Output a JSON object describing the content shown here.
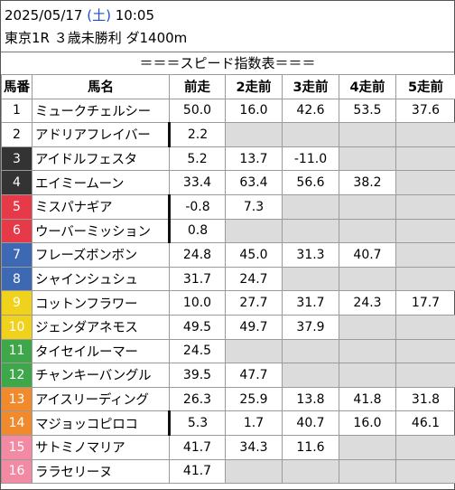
{
  "header": {
    "date": "2025/05/17",
    "dow_open": "(",
    "dow": "土",
    "dow_close": ")",
    "time": "10:05",
    "race": "東京1R ３歳未勝利 ダ1400m",
    "banner": "＝＝＝スピード指数表＝＝＝"
  },
  "table": {
    "columns": [
      "馬番",
      "馬名",
      "前走",
      "2走前",
      "3走前",
      "4走前",
      "5走前"
    ],
    "rows": [
      {
        "num": "1",
        "name": "ミュークチェルシー",
        "bg": "#ffffff",
        "fg": "#000000",
        "bar": false,
        "vals": [
          "50.0",
          "16.0",
          "42.6",
          "53.5",
          "37.6"
        ]
      },
      {
        "num": "2",
        "name": "アドリアフレイバー",
        "bg": "#ffffff",
        "fg": "#000000",
        "bar": true,
        "vals": [
          "2.2",
          "",
          "",
          "",
          ""
        ]
      },
      {
        "num": "3",
        "name": "アイドルフェスタ",
        "bg": "#333333",
        "fg": "#ffffff",
        "bar": false,
        "vals": [
          "5.2",
          "13.7",
          "-11.0",
          "",
          ""
        ]
      },
      {
        "num": "4",
        "name": "エイミームーン",
        "bg": "#333333",
        "fg": "#ffffff",
        "bar": false,
        "vals": [
          "33.4",
          "63.4",
          "56.6",
          "38.2",
          ""
        ]
      },
      {
        "num": "5",
        "name": "ミスパナギア",
        "bg": "#e63a48",
        "fg": "#ffffff",
        "bar": true,
        "vals": [
          "-0.8",
          "7.3",
          "",
          "",
          ""
        ]
      },
      {
        "num": "6",
        "name": "ウーバーミッション",
        "bg": "#e63a48",
        "fg": "#ffffff",
        "bar": true,
        "vals": [
          "0.8",
          "",
          "",
          "",
          ""
        ]
      },
      {
        "num": "7",
        "name": "フレーズボンボン",
        "bg": "#3d68b3",
        "fg": "#ffffff",
        "bar": false,
        "vals": [
          "24.8",
          "45.0",
          "31.3",
          "40.7",
          ""
        ]
      },
      {
        "num": "8",
        "name": "シャインシュシュ",
        "bg": "#3d68b3",
        "fg": "#ffffff",
        "bar": false,
        "vals": [
          "31.7",
          "24.7",
          "",
          "",
          ""
        ]
      },
      {
        "num": "9",
        "name": "コットンフラワー",
        "bg": "#f0d21d",
        "fg": "#ffffff",
        "bar": false,
        "vals": [
          "10.0",
          "27.7",
          "31.7",
          "24.3",
          "17.7"
        ]
      },
      {
        "num": "10",
        "name": "ジェンダアネモス",
        "bg": "#f0d21d",
        "fg": "#ffffff",
        "bar": false,
        "vals": [
          "49.5",
          "49.7",
          "37.9",
          "",
          ""
        ]
      },
      {
        "num": "11",
        "name": "タイセイルーマー",
        "bg": "#3ea74a",
        "fg": "#ffffff",
        "bar": false,
        "vals": [
          "24.5",
          "",
          "",
          "",
          ""
        ]
      },
      {
        "num": "12",
        "name": "チャンキーバングル",
        "bg": "#3ea74a",
        "fg": "#ffffff",
        "bar": false,
        "vals": [
          "39.5",
          "47.7",
          "",
          "",
          ""
        ]
      },
      {
        "num": "13",
        "name": "アイスリーディング",
        "bg": "#f08a2c",
        "fg": "#ffffff",
        "bar": false,
        "vals": [
          "26.3",
          "25.9",
          "13.8",
          "41.8",
          "31.8"
        ]
      },
      {
        "num": "14",
        "name": "マジョッコピロコ",
        "bg": "#f08a2c",
        "fg": "#ffffff",
        "bar": true,
        "vals": [
          "5.3",
          "1.7",
          "40.7",
          "16.0",
          "46.1"
        ]
      },
      {
        "num": "15",
        "name": "サトミノマリア",
        "bg": "#f38aa4",
        "fg": "#ffffff",
        "bar": false,
        "vals": [
          "41.7",
          "34.3",
          "11.6",
          "",
          ""
        ]
      },
      {
        "num": "16",
        "name": "ララセリーヌ",
        "bg": "#f38aa4",
        "fg": "#ffffff",
        "bar": false,
        "vals": [
          "41.7",
          "",
          "",
          "",
          ""
        ]
      }
    ]
  },
  "colors": {
    "empty_cell": "#dcdcdc",
    "weekday": "#1a4fd6"
  }
}
